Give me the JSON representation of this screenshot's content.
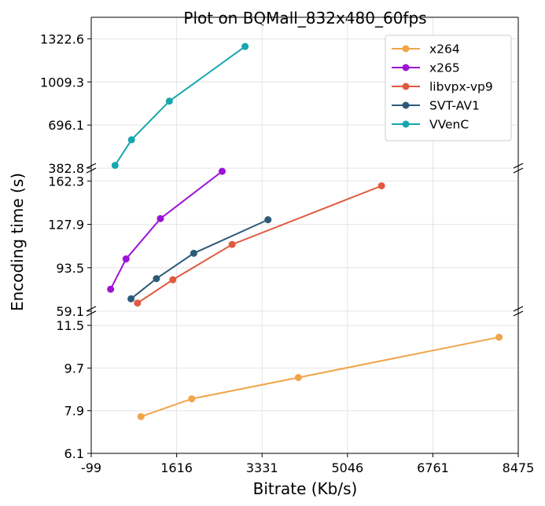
{
  "chart_data": {
    "type": "line",
    "title": "Plot on BQMall_832x480_60fps",
    "xlabel": "Bitrate (Kb/s)",
    "ylabel": "Encoding time (s)",
    "xlim": [
      -99,
      8475
    ],
    "x_ticks": [
      "-99",
      "1616",
      "3331",
      "5046",
      "6761",
      "8475"
    ],
    "x_tick_values": [
      -99,
      1616,
      3331,
      5046,
      6761,
      8475
    ],
    "grid": true,
    "legend_position": "top-right",
    "broken_y_axis": true,
    "panels": [
      {
        "id": "top",
        "ylim": [
          382.8,
          1479.3
        ],
        "y_ticks": [
          "382.8",
          "696.1",
          "1009.3",
          "1322.6"
        ],
        "y_tick_values": [
          382.8,
          696.1,
          1009.3,
          1322.6
        ]
      },
      {
        "id": "middle",
        "ylim": [
          59.1,
          172.5
        ],
        "y_ticks": [
          "59.1",
          "93.5",
          "127.9",
          "162.3"
        ],
        "y_tick_values": [
          59.1,
          93.5,
          127.9,
          162.3
        ]
      },
      {
        "id": "bottom",
        "ylim": [
          6.1,
          12.1
        ],
        "y_ticks": [
          "6.1",
          "7.9",
          "9.7",
          "11.5"
        ],
        "y_tick_values": [
          6.1,
          7.9,
          9.7,
          11.5
        ]
      }
    ],
    "series": [
      {
        "name": "x264",
        "color": "#f0a54a",
        "panel": "bottom",
        "x": [
          900,
          1920,
          4060,
          8090
        ],
        "y": [
          7.65,
          8.4,
          9.3,
          11.0
        ]
      },
      {
        "name": "x265",
        "color": "#9c12d8",
        "panel": "middle",
        "x": [
          290,
          600,
          1290,
          2530
        ],
        "y": [
          76.5,
          100.5,
          132.5,
          170.0
        ]
      },
      {
        "name": "libvpx-vp9",
        "color": "#e05a40",
        "panel": "middle",
        "x": [
          830,
          1540,
          2730,
          5730
        ],
        "y": [
          65.5,
          84.0,
          112.0,
          158.5
        ]
      },
      {
        "name": "SVT-AV1",
        "color": "#2e5a78",
        "panel": "middle",
        "x": [
          700,
          1210,
          1960,
          3450
        ],
        "y": [
          68.9,
          84.9,
          105.0,
          131.6
        ]
      },
      {
        "name": "VVenC",
        "color": "#16a6ae",
        "panel": "top",
        "x": [
          380,
          710,
          1470,
          2990
        ],
        "y": [
          403,
          589,
          870,
          1267
        ]
      }
    ]
  }
}
